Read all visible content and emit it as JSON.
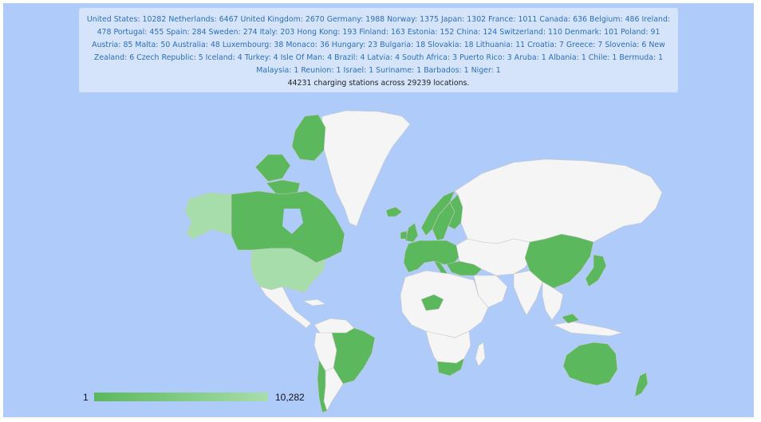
{
  "info": {
    "countries": [
      {
        "name": "United States",
        "count": "10282"
      },
      {
        "name": "Netherlands",
        "count": "6467"
      },
      {
        "name": "United Kingdom",
        "count": "2670"
      },
      {
        "name": "Germany",
        "count": "1988"
      },
      {
        "name": "Norway",
        "count": "1375"
      },
      {
        "name": "Japan",
        "count": "1302"
      },
      {
        "name": "France",
        "count": "1011"
      },
      {
        "name": "Canada",
        "count": "636"
      },
      {
        "name": "Belgium",
        "count": "486"
      },
      {
        "name": "Ireland",
        "count": "478"
      },
      {
        "name": "Portugal",
        "count": "455"
      },
      {
        "name": "Spain",
        "count": "284"
      },
      {
        "name": "Sweden",
        "count": "274"
      },
      {
        "name": "Italy",
        "count": "203"
      },
      {
        "name": "Hong Kong",
        "count": "193"
      },
      {
        "name": "Finland",
        "count": "163"
      },
      {
        "name": "Estonia",
        "count": "152"
      },
      {
        "name": "China",
        "count": "124"
      },
      {
        "name": "Switzerland",
        "count": "110"
      },
      {
        "name": "Denmark",
        "count": "101"
      },
      {
        "name": "Poland",
        "count": "91"
      },
      {
        "name": "Austria",
        "count": "85"
      },
      {
        "name": "Malta",
        "count": "50"
      },
      {
        "name": "Australia",
        "count": "48"
      },
      {
        "name": "Luxembourg",
        "count": "38"
      },
      {
        "name": "Monaco",
        "count": "36"
      },
      {
        "name": "Hungary",
        "count": "23"
      },
      {
        "name": "Bulgaria",
        "count": "18"
      },
      {
        "name": "Slovakia",
        "count": "18"
      },
      {
        "name": "Lithuania",
        "count": "11"
      },
      {
        "name": "Croatia",
        "count": "7"
      },
      {
        "name": "Greece",
        "count": "7"
      },
      {
        "name": "Slovenia",
        "count": "6"
      },
      {
        "name": "New Zealand",
        "count": "6"
      },
      {
        "name": "Czech Republic",
        "count": "5"
      },
      {
        "name": "Iceland",
        "count": "4"
      },
      {
        "name": "Turkey",
        "count": "4"
      },
      {
        "name": "Isle Of Man",
        "count": "4"
      },
      {
        "name": "Brazil",
        "count": "4"
      },
      {
        "name": "Latvia",
        "count": "4"
      },
      {
        "name": "South Africa",
        "count": "3"
      },
      {
        "name": "Puerto Rico",
        "count": "3"
      },
      {
        "name": "Aruba",
        "count": "1"
      },
      {
        "name": "Albania",
        "count": "1"
      },
      {
        "name": "Chile",
        "count": "1"
      },
      {
        "name": "Bermuda",
        "count": "1"
      },
      {
        "name": "Malaysia",
        "count": "1"
      },
      {
        "name": "Reunion",
        "count": "1"
      },
      {
        "name": "Israel",
        "count": "1"
      },
      {
        "name": "Suriname",
        "count": "1"
      },
      {
        "name": "Barbados",
        "count": "1"
      },
      {
        "name": "Niger",
        "count": "1"
      }
    ],
    "summary": "44231 charging stations across 29239 locations."
  },
  "legend": {
    "min_label": "1",
    "max_label": "10,282",
    "min_color": "#5cb85c",
    "max_color": "#a7ddaa"
  },
  "colors": {
    "ocean": "#aecbfa",
    "no_data_land": "#f5f5f5",
    "border": "#c8c8c8",
    "high_value": "#a7ddaa",
    "mid_value": "#86cb87",
    "low_value": "#5cb85c"
  }
}
